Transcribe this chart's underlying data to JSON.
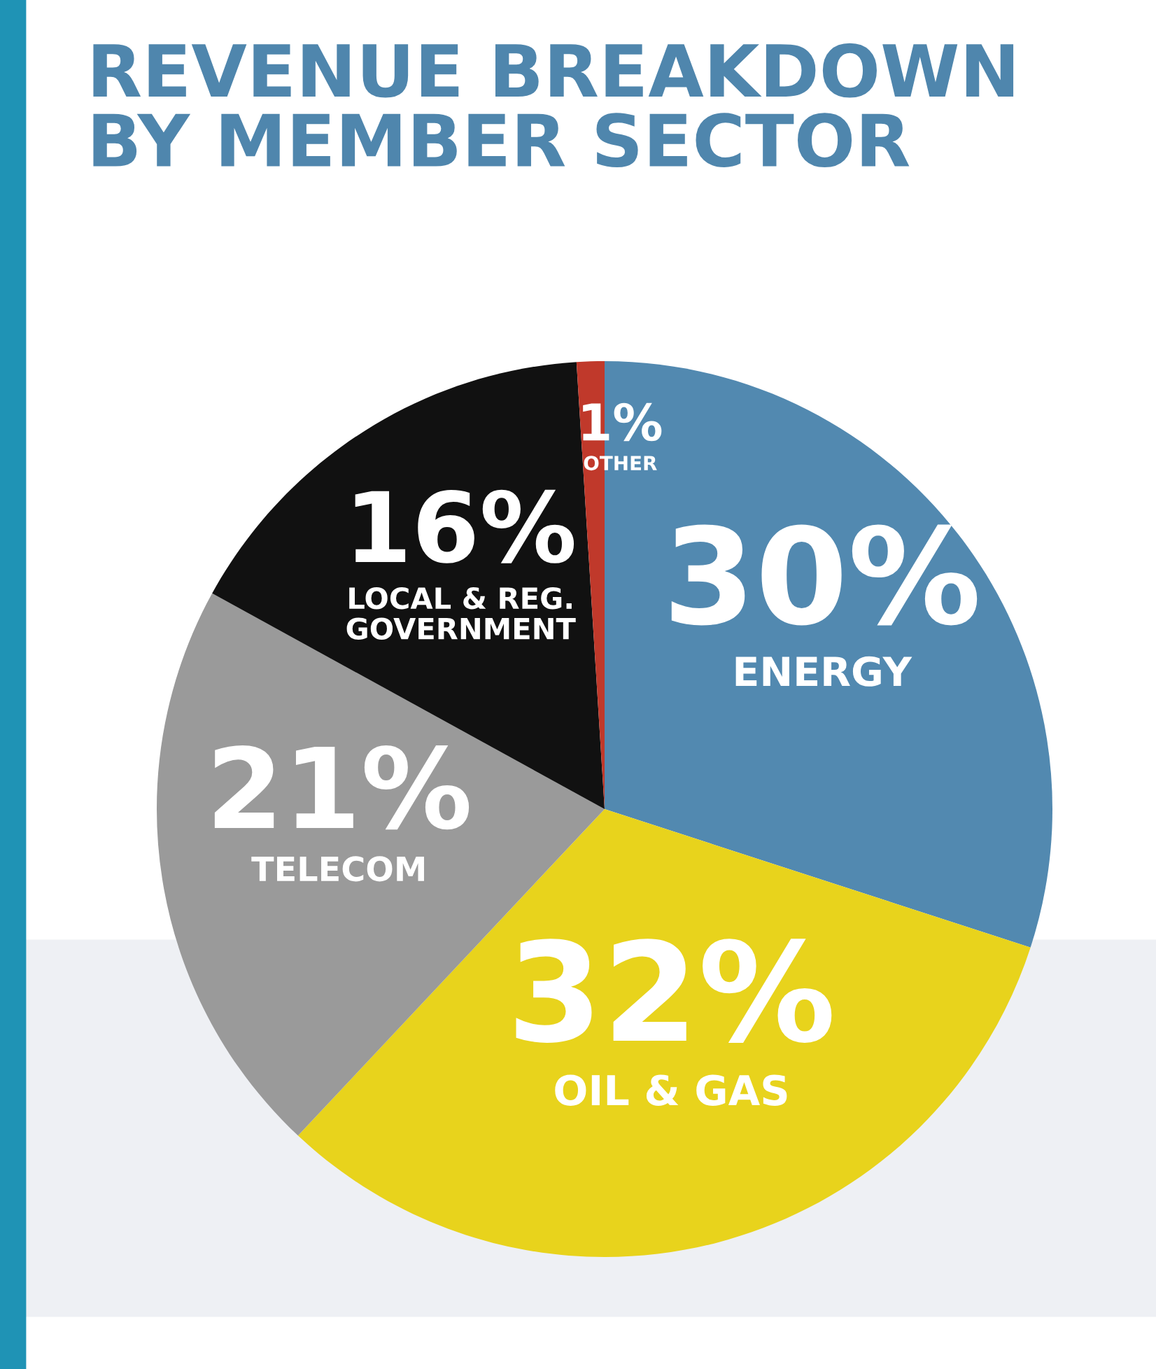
{
  "chart_data": {
    "type": "pie",
    "title": "REVENUE BREAKDOWN\nBY MEMBER SECTOR",
    "categories": [
      "ENERGY",
      "OIL & GAS",
      "TELECOM",
      "LOCAL & REG.\nGOVERNMENT",
      "OTHER"
    ],
    "values": [
      30,
      32,
      21,
      16,
      1
    ],
    "value_labels": [
      "30%",
      "32%",
      "21%",
      "16%",
      "1%"
    ],
    "colors": [
      "#5289b0",
      "#e8d31c",
      "#9a9a9a",
      "#111111",
      "#c0392b"
    ]
  }
}
